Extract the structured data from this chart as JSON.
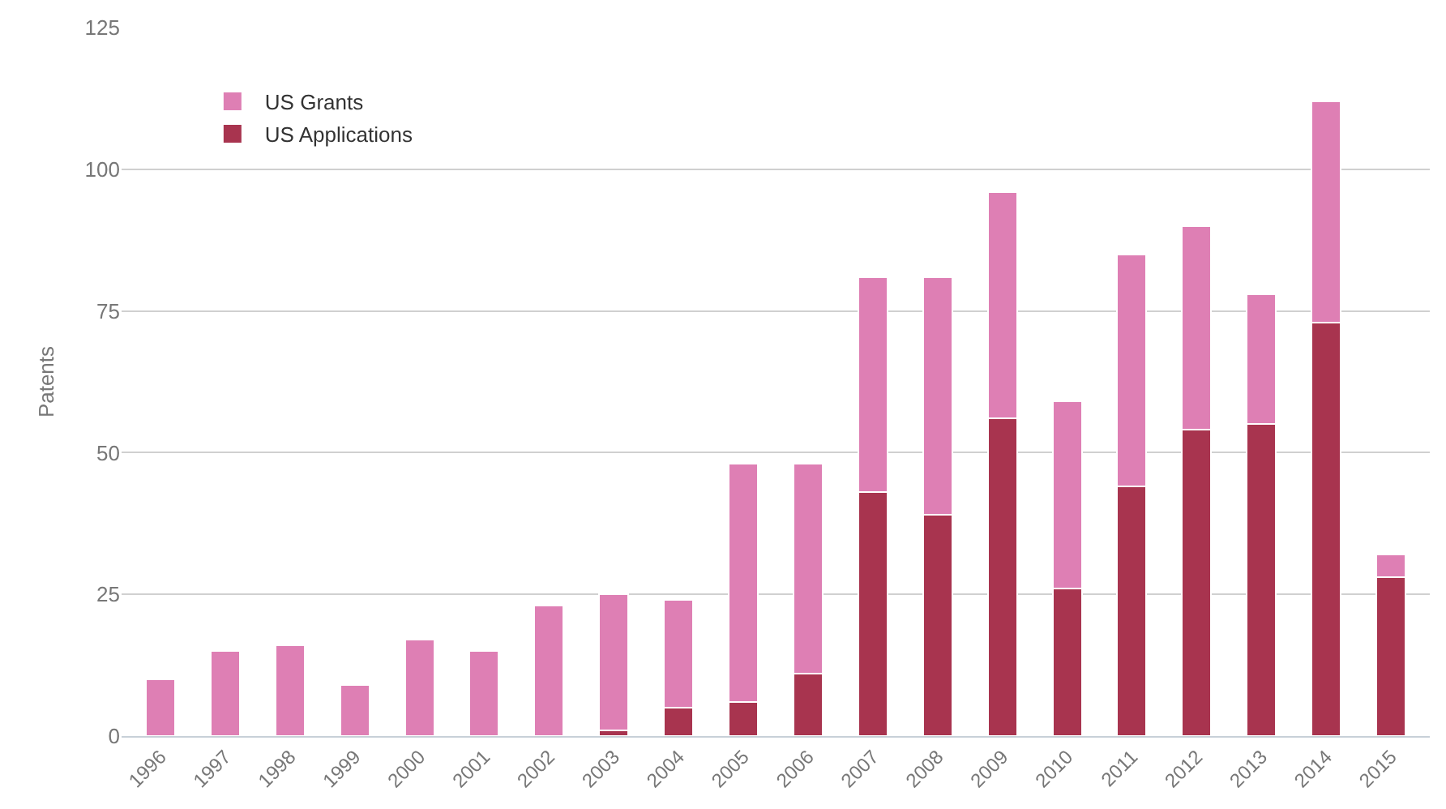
{
  "chart_data": {
    "type": "bar",
    "ylabel": "Patents",
    "stacked": true,
    "categories": [
      "1996",
      "1997",
      "1998",
      "1999",
      "2000",
      "2001",
      "2002",
      "2003",
      "2004",
      "2005",
      "2006",
      "2007",
      "2008",
      "2009",
      "2010",
      "2011",
      "2012",
      "2013",
      "2014",
      "2015"
    ],
    "series": [
      {
        "name": "US Applications",
        "color": "#a8344f",
        "values": [
          0,
          0,
          0,
          0,
          0,
          0,
          0,
          1,
          5,
          6,
          11,
          43,
          39,
          56,
          26,
          44,
          54,
          55,
          73,
          28
        ]
      },
      {
        "name": "US Grants",
        "color": "#de7fb4",
        "values": [
          10,
          15,
          16,
          9,
          17,
          15,
          23,
          24,
          19,
          42,
          37,
          38,
          42,
          40,
          33,
          41,
          36,
          23,
          39,
          4
        ]
      }
    ],
    "ylim": [
      0,
      125
    ],
    "yticks": [
      0,
      25,
      50,
      75,
      100,
      125
    ],
    "grid": "y",
    "legend": "top left"
  }
}
